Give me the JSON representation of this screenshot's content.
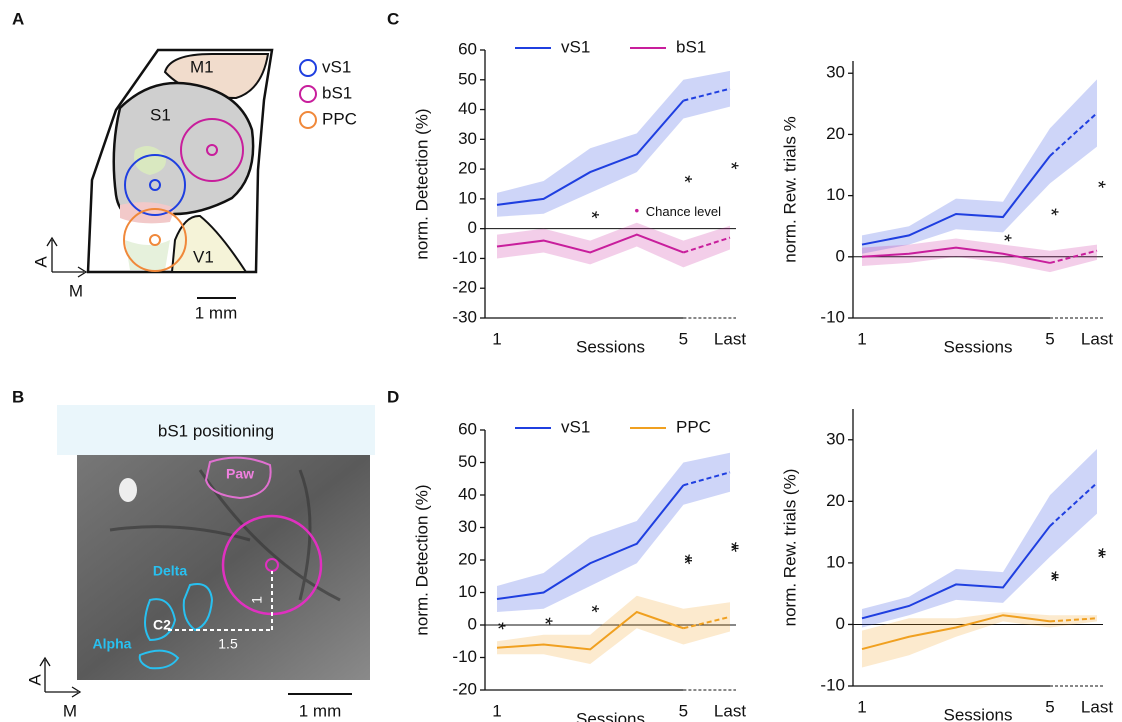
{
  "panel_labels": [
    "A",
    "B",
    "C",
    "D"
  ],
  "panel_a": {
    "regions": [
      "M1",
      "S1",
      "V1"
    ],
    "legend": [
      {
        "name": "vS1",
        "color": "#1f3fe0"
      },
      {
        "name": "bS1",
        "color": "#c81e9c"
      },
      {
        "name": "PPC",
        "color": "#f0883a"
      }
    ],
    "axis_labels": [
      "A",
      "M"
    ],
    "scale_bar": "1 mm"
  },
  "panel_b": {
    "title": "bS1 positioning",
    "labels": [
      "Paw",
      "Delta",
      "C2",
      "Alpha"
    ],
    "offsets": [
      "1",
      "1.5"
    ],
    "axis_labels": [
      "A",
      "M"
    ],
    "scale_bar": "1 mm"
  },
  "chart_data": [
    {
      "type": "line",
      "ylabel": "norm. Detection (%)",
      "xlabel": "Sessions",
      "categories": [
        "1",
        null,
        null,
        null,
        "5",
        "Last"
      ],
      "ylim": [
        -30,
        60
      ],
      "yticks": [
        -30,
        -20,
        -10,
        0,
        10,
        20,
        30,
        40,
        50,
        60
      ],
      "legend": true,
      "dashed_last": true,
      "note": "Chance level",
      "significance": [
        null,
        null,
        "*",
        null,
        "*",
        "*"
      ],
      "series": [
        {
          "name": "vS1",
          "color": "#1f3fe0",
          "values": [
            8,
            10,
            19,
            25,
            43,
            47
          ],
          "upper": [
            12,
            16,
            27,
            32,
            50,
            53
          ],
          "lower": [
            4,
            5,
            12,
            19,
            37,
            41
          ]
        },
        {
          "name": "bS1",
          "color": "#c81e9c",
          "values": [
            -6,
            -4,
            -8,
            -2,
            -8,
            -3
          ],
          "upper": [
            -2,
            0,
            -4,
            2,
            -4,
            1
          ],
          "lower": [
            -10,
            -8,
            -12,
            -6,
            -13,
            -7
          ]
        }
      ]
    },
    {
      "type": "line",
      "ylabel": "norm. Rew. trials %",
      "xlabel": "Sessions",
      "categories": [
        "1",
        null,
        null,
        null,
        "5",
        "Last"
      ],
      "ylim": [
        -10,
        32
      ],
      "yticks": [
        -10,
        0,
        10,
        20,
        30
      ],
      "legend": false,
      "dashed_last": true,
      "significance": [
        null,
        null,
        null,
        "*",
        "*",
        "*"
      ],
      "series": [
        {
          "name": "vS1",
          "color": "#1f3fe0",
          "values": [
            2,
            3.5,
            7,
            6.5,
            16.5,
            23.5
          ],
          "upper": [
            3.5,
            5,
            9.5,
            9,
            21,
            29
          ],
          "lower": [
            0.5,
            2,
            4.5,
            4,
            12,
            18
          ]
        },
        {
          "name": "bS1",
          "color": "#c81e9c",
          "values": [
            0,
            0.5,
            1.5,
            0.5,
            -1,
            1
          ],
          "upper": [
            1.5,
            2,
            3,
            2,
            1,
            2
          ],
          "lower": [
            -1.5,
            -1,
            0,
            -1,
            -2.5,
            -0.5
          ]
        }
      ]
    },
    {
      "type": "line",
      "ylabel": "norm. Detection (%)",
      "xlabel": "Sessions",
      "categories": [
        "1",
        null,
        null,
        null,
        "5",
        "Last"
      ],
      "ylim": [
        -20,
        60
      ],
      "yticks": [
        -20,
        -10,
        0,
        10,
        20,
        30,
        40,
        50,
        60
      ],
      "legend": true,
      "dashed_last": true,
      "significance": [
        "*",
        "*",
        "*",
        null,
        "**",
        "**"
      ],
      "series": [
        {
          "name": "vS1",
          "color": "#1f3fe0",
          "values": [
            8,
            10,
            19,
            25,
            43,
            47
          ],
          "upper": [
            12,
            16,
            27,
            32,
            50,
            53
          ],
          "lower": [
            4,
            5,
            12,
            19,
            37,
            41
          ]
        },
        {
          "name": "PPC",
          "color": "#f0a020",
          "values": [
            -7,
            -6,
            -7.5,
            4,
            -1,
            2.5
          ],
          "upper": [
            -5,
            -3,
            -3,
            9,
            5,
            7
          ],
          "lower": [
            -9,
            -9,
            -12,
            -1,
            -6,
            -2
          ]
        }
      ]
    },
    {
      "type": "line",
      "ylabel": "norm. Rew. trials (%)",
      "xlabel": "Sessions",
      "categories": [
        "1",
        null,
        null,
        null,
        "5",
        "Last"
      ],
      "ylim": [
        -10,
        35
      ],
      "yticks": [
        -10,
        0,
        10,
        20,
        30
      ],
      "legend": false,
      "dashed_last": true,
      "significance": [
        null,
        null,
        null,
        null,
        "**",
        "**"
      ],
      "series": [
        {
          "name": "vS1",
          "color": "#1f3fe0",
          "values": [
            1,
            3,
            6.5,
            6,
            16,
            23
          ],
          "upper": [
            2.5,
            4.5,
            9,
            8.5,
            21,
            28.5
          ],
          "lower": [
            -0.5,
            1.5,
            4,
            3.5,
            11,
            18
          ]
        },
        {
          "name": "PPC",
          "color": "#f0a020",
          "values": [
            -4,
            -2,
            -0.5,
            1.5,
            0.5,
            1
          ],
          "upper": [
            -1,
            1,
            1,
            2,
            1.5,
            1.5
          ],
          "lower": [
            -7,
            -5,
            -2,
            0.5,
            -0.5,
            0.5
          ]
        }
      ]
    }
  ]
}
